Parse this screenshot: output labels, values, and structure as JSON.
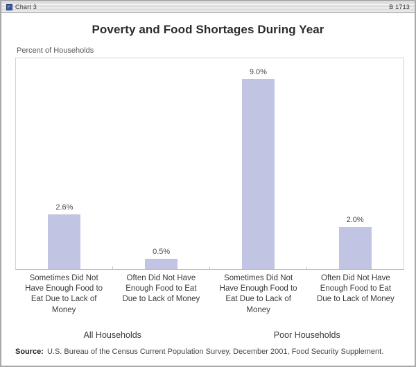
{
  "window": {
    "titlebar": {
      "left_label": "Chart 3",
      "right_label": "B 1713"
    }
  },
  "chart_data": {
    "type": "bar",
    "title": "Poverty and Food Shortages During Year",
    "ylabel": "Percent of Households",
    "ylim": [
      0,
      10
    ],
    "grid": false,
    "legend": false,
    "bar_color": "#c1c4e2",
    "groups": [
      {
        "label": "All Households",
        "bars": [
          {
            "category": "Sometimes Did Not Have Enough Food to Eat Due to Lack of Money",
            "value": 2.6,
            "value_label": "2.6%"
          },
          {
            "category": "Often Did Not Have Enough Food to Eat Due to Lack of Money",
            "value": 0.5,
            "value_label": "0.5%"
          }
        ]
      },
      {
        "label": "Poor Households",
        "bars": [
          {
            "category": "Sometimes Did Not Have Enough Food to Eat Due to Lack of Money",
            "value": 9.0,
            "value_label": "9.0%"
          },
          {
            "category": "Often Did Not Have Enough Food to Eat Due to Lack of Money",
            "value": 2.0,
            "value_label": "2.0%"
          }
        ]
      }
    ]
  },
  "source": {
    "prefix": "Source:",
    "text": "U.S. Bureau of the Census Current Population Survey, December 2001, Food Security Supplement."
  }
}
